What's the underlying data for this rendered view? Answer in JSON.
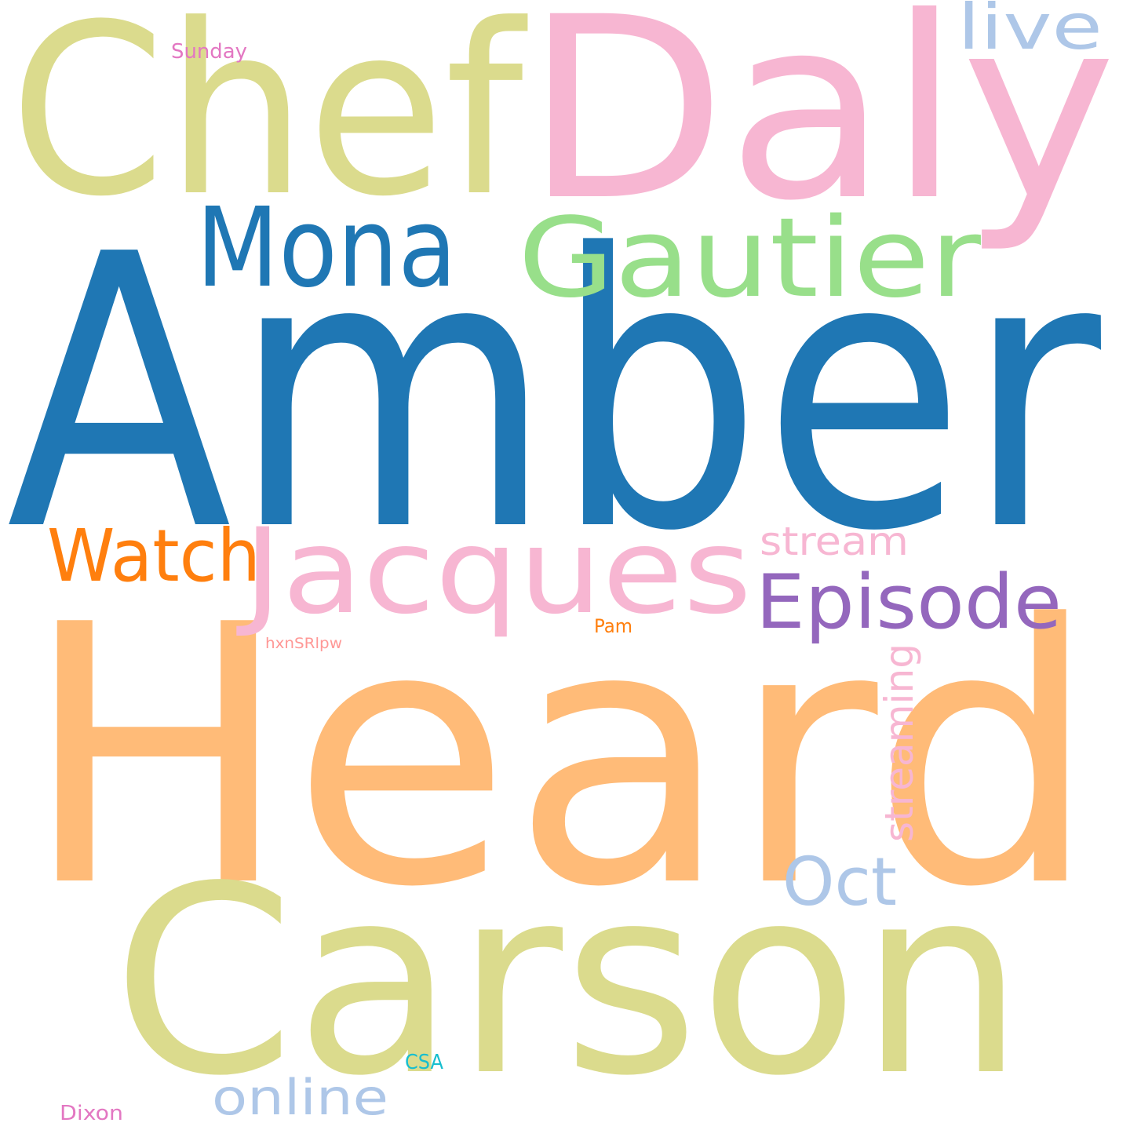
{
  "words": [
    {
      "id": "amber",
      "text": "Amber",
      "color": "#1f77b4"
    },
    {
      "id": "heard",
      "text": "Heard",
      "color": "#ffbb78"
    },
    {
      "id": "carson",
      "text": "Carson",
      "color": "#dbdb8d"
    },
    {
      "id": "chef",
      "text": "Chef",
      "color": "#dbdb8d"
    },
    {
      "id": "daly",
      "text": "Daly",
      "color": "#f7b6d2"
    },
    {
      "id": "jacques",
      "text": "Jacques",
      "color": "#f7b6d2"
    },
    {
      "id": "gautier",
      "text": "Gautier",
      "color": "#98df8a"
    },
    {
      "id": "mona",
      "text": "Mona",
      "color": "#1f77b4"
    },
    {
      "id": "episode",
      "text": "Episode",
      "color": "#9467bd"
    },
    {
      "id": "watch",
      "text": "Watch",
      "color": "#ff7f0e"
    },
    {
      "id": "oct",
      "text": "Oct",
      "color": "#aec7e8"
    },
    {
      "id": "live",
      "text": "live",
      "color": "#aec7e8"
    },
    {
      "id": "stream",
      "text": "stream",
      "color": "#f7b6d2"
    },
    {
      "id": "streaming",
      "text": "streaming",
      "color": "#f7b6d2"
    },
    {
      "id": "online",
      "text": "online",
      "color": "#aec7e8"
    },
    {
      "id": "sunday",
      "text": "Sunday",
      "color": "#e377c2"
    },
    {
      "id": "pam",
      "text": "Pam",
      "color": "#ff7f0e"
    },
    {
      "id": "hxnsrlpw",
      "text": "hxnSRlpw",
      "color": "#ff9896"
    },
    {
      "id": "csa",
      "text": "CSA",
      "color": "#17becf"
    },
    {
      "id": "dixon",
      "text": "Dixon",
      "color": "#e377c2"
    }
  ]
}
